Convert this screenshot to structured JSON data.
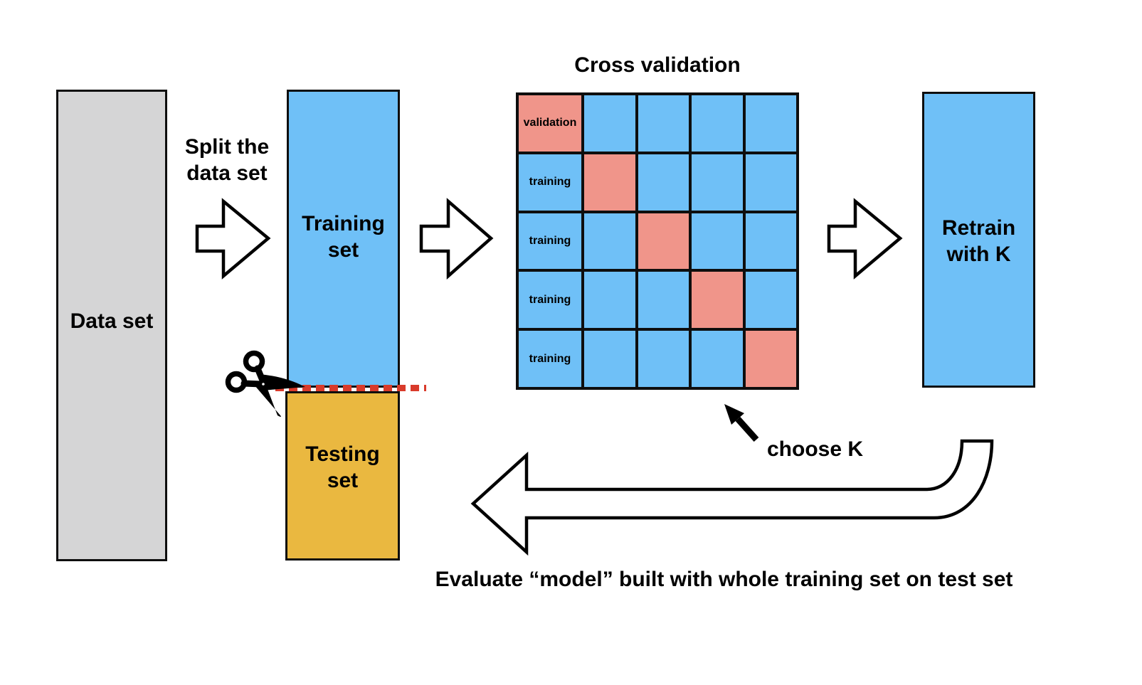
{
  "texts": {
    "cross_validation_title": "Cross validation",
    "split_label": "Split the\ndata set",
    "dataset_label": "Data set",
    "training_label": "Training\nset",
    "testing_label": "Testing\nset",
    "retrain_label": "Retrain\nwith K",
    "choose_k_label": "choose K",
    "evaluate_label": "Evaluate “model” built with whole training set on test set"
  },
  "grid": {
    "columns": 5,
    "rows": [
      {
        "label": "validation",
        "highlight_col": 0
      },
      {
        "label": "training",
        "highlight_col": 1
      },
      {
        "label": "training",
        "highlight_col": 2
      },
      {
        "label": "training",
        "highlight_col": 3
      },
      {
        "label": "training",
        "highlight_col": 4
      }
    ]
  },
  "colors": {
    "dataset-fill": "#d5d5d6",
    "box-blue": "#6fc0f7",
    "cell-salmon": "#f0958a",
    "testing-gold": "#eab840",
    "cut-red": "#d93b2b",
    "line-black": "#0e0e0e"
  }
}
